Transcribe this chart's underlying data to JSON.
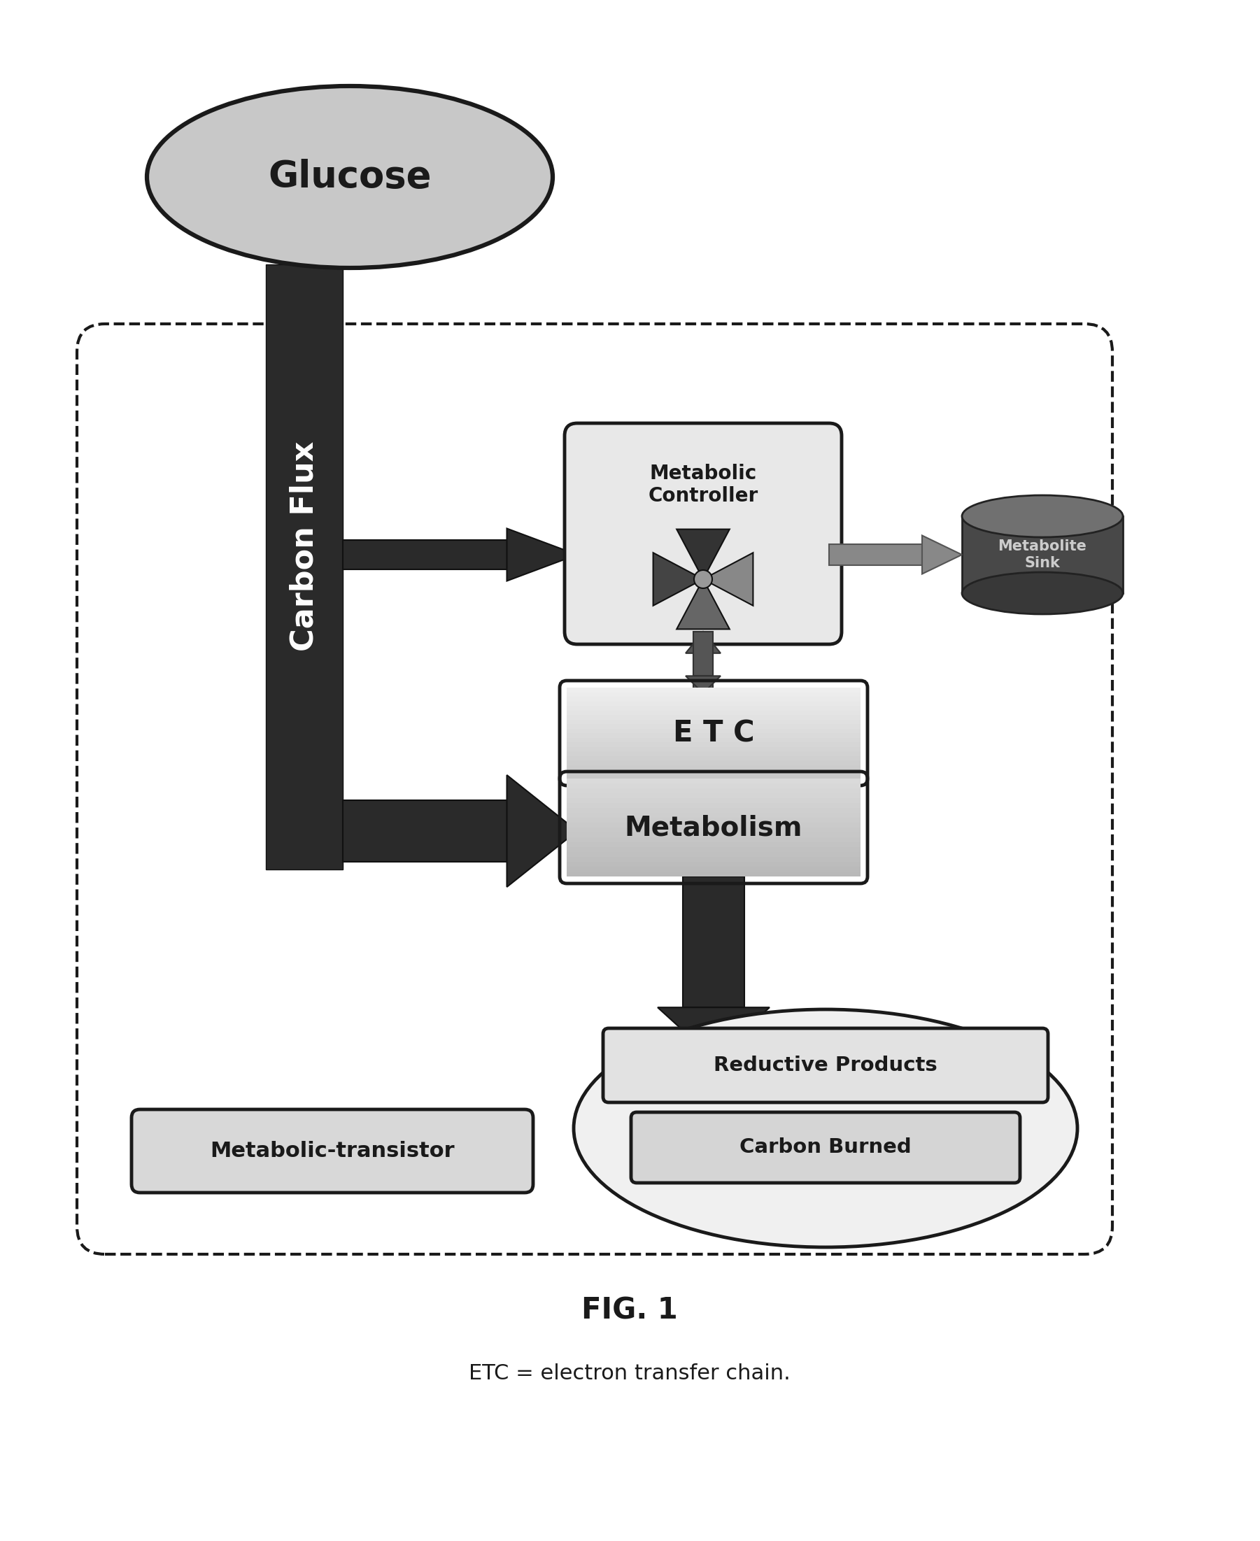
{
  "fig_width": 18.01,
  "fig_height": 22.03,
  "bg_color": "#ffffff",
  "title": "FIG. 1",
  "subtitle": "ETC = electron transfer chain.",
  "glucose_label": "Glucose",
  "carbon_flux_label": "Carbon\nFlux",
  "metabolic_controller_label": "Metabolic\nController",
  "metabolite_sink_label": "Metabolite\nSink",
  "etc_label": "E T C",
  "metabolism_label": "Metabolism",
  "metabolic_transistor_label": "Metabolic-transistor",
  "reductive_products_label": "Reductive Products",
  "carbon_burned_label": "Carbon Burned",
  "dark_color": "#1a1a1a",
  "gray_light": "#d0d0d0",
  "gray_medium": "#a0a0a0",
  "gray_dark": "#606060",
  "box_fill_light": "#e8e8e8",
  "box_fill_white": "#f5f5f5"
}
